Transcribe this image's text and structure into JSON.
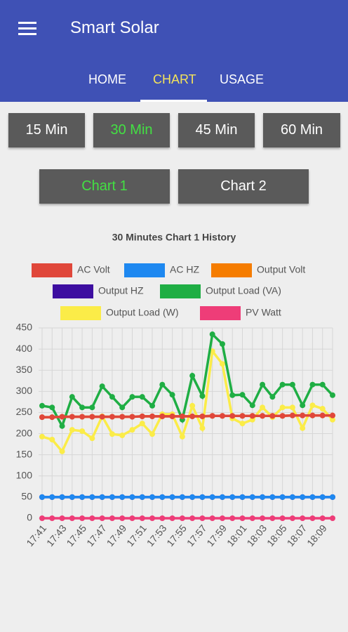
{
  "app_bar": {
    "title": "Smart Solar"
  },
  "tabs": [
    "HOME",
    "CHART",
    "USAGE"
  ],
  "time_buttons": [
    "15 Min",
    "30 Min",
    "45 Min",
    "60 Min"
  ],
  "chart_buttons": [
    "Chart 1",
    "Chart 2"
  ],
  "chart_data": {
    "type": "line",
    "title": "30 Minutes Chart 1 History",
    "categories": [
      "17:41",
      null,
      "17:43",
      null,
      "17:45",
      null,
      "17:47",
      null,
      "17:49",
      null,
      "17:51",
      null,
      "17:53",
      null,
      "17:55",
      null,
      "17:57",
      null,
      "17:59",
      null,
      "18:01",
      null,
      "18:03",
      null,
      "18:05",
      null,
      "18:07",
      null,
      "18:09",
      null
    ],
    "ylim": [
      0,
      450
    ],
    "yticks": [
      0,
      50,
      100,
      150,
      200,
      250,
      300,
      350,
      400,
      450
    ],
    "grid": true,
    "series": [
      {
        "name": "AC Volt",
        "color": "#e0473a",
        "values": [
          239,
          239,
          240,
          240,
          240,
          240,
          240,
          240,
          240,
          240,
          241,
          241,
          241,
          241,
          241,
          241,
          241,
          242,
          242,
          242,
          242,
          242,
          242,
          242,
          242,
          243,
          243,
          243,
          243,
          243
        ]
      },
      {
        "name": "AC HZ",
        "color": "#1e88f0",
        "values": [
          50,
          50,
          50,
          50,
          50,
          50,
          50,
          50,
          50,
          50,
          50,
          50,
          50,
          50,
          50,
          50,
          50,
          50,
          50,
          50,
          50,
          50,
          50,
          50,
          50,
          50,
          50,
          50,
          50,
          50
        ]
      },
      {
        "name": "Output Volt",
        "color": "#f57c00",
        "values": [
          239,
          239,
          240,
          240,
          240,
          240,
          240,
          240,
          240,
          240,
          241,
          241,
          241,
          241,
          241,
          241,
          241,
          242,
          242,
          242,
          242,
          242,
          242,
          242,
          242,
          243,
          243,
          243,
          243,
          243
        ]
      },
      {
        "name": "Output HZ",
        "color": "#3d0ea0",
        "values": [
          50,
          50,
          50,
          50,
          50,
          50,
          50,
          50,
          50,
          50,
          50,
          50,
          50,
          50,
          50,
          50,
          50,
          50,
          50,
          50,
          50,
          50,
          50,
          50,
          50,
          50,
          50,
          50,
          50,
          50
        ]
      },
      {
        "name": "Output Load (VA)",
        "color": "#1fae44",
        "values": [
          266,
          262,
          218,
          287,
          262,
          262,
          312,
          287,
          262,
          287,
          287,
          266,
          316,
          292,
          233,
          337,
          289,
          435,
          412,
          291,
          292,
          267,
          316,
          287,
          316,
          316,
          267,
          316,
          316,
          291
        ]
      },
      {
        "name": "Output Load (W)",
        "color": "#fbec48",
        "values": [
          193,
          186,
          158,
          209,
          206,
          189,
          241,
          199,
          196,
          209,
          224,
          199,
          246,
          246,
          193,
          266,
          213,
          395,
          365,
          236,
          224,
          233,
          262,
          239,
          262,
          262,
          213,
          267,
          259,
          233
        ]
      },
      {
        "name": "PV Watt",
        "color": "#ee3d78",
        "values": [
          0,
          0,
          0,
          0,
          0,
          0,
          0,
          0,
          0,
          0,
          0,
          0,
          0,
          0,
          0,
          0,
          0,
          0,
          0,
          0,
          0,
          0,
          0,
          0,
          0,
          0,
          0,
          0,
          0,
          0
        ]
      }
    ]
  }
}
